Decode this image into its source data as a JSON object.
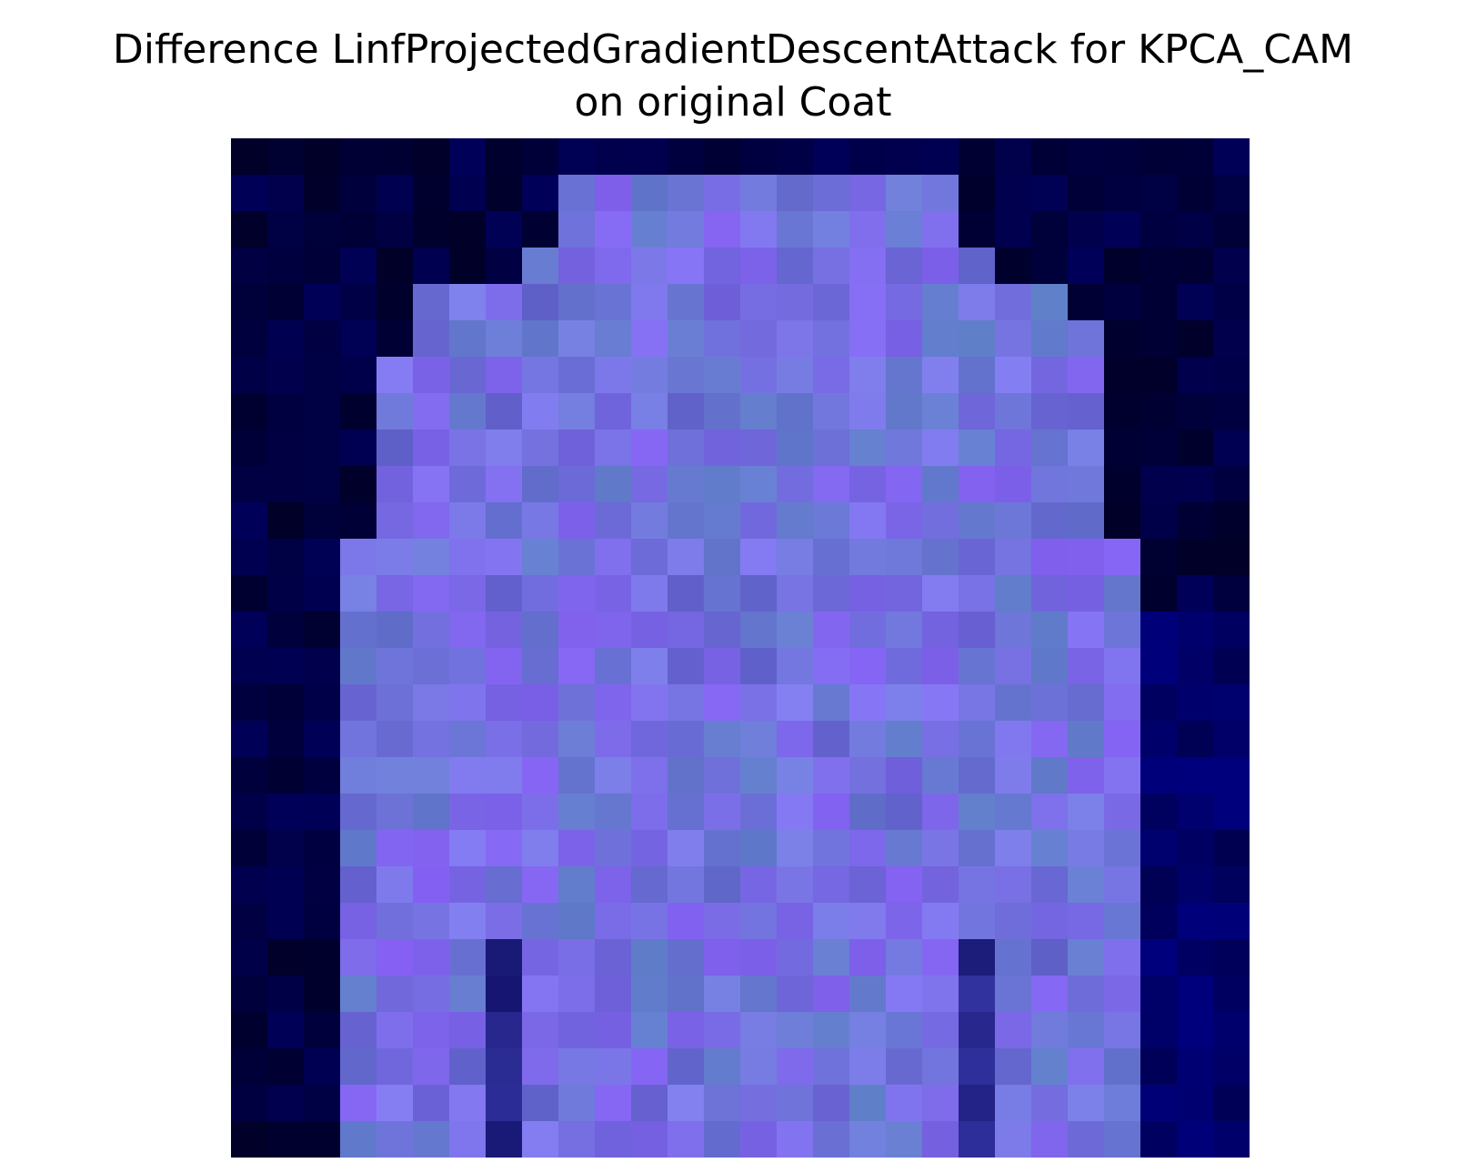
{
  "title": {
    "line1": "Difference LinfProjectedGradientDescentAttack for KPCA_CAM",
    "line2": "on original Coat"
  },
  "image": {
    "description_name": "coat-difference-heatmap",
    "colors": {
      "background_dark": "#03033f",
      "garment_light": "#7070d8",
      "border_blue": "#00007a"
    }
  }
}
